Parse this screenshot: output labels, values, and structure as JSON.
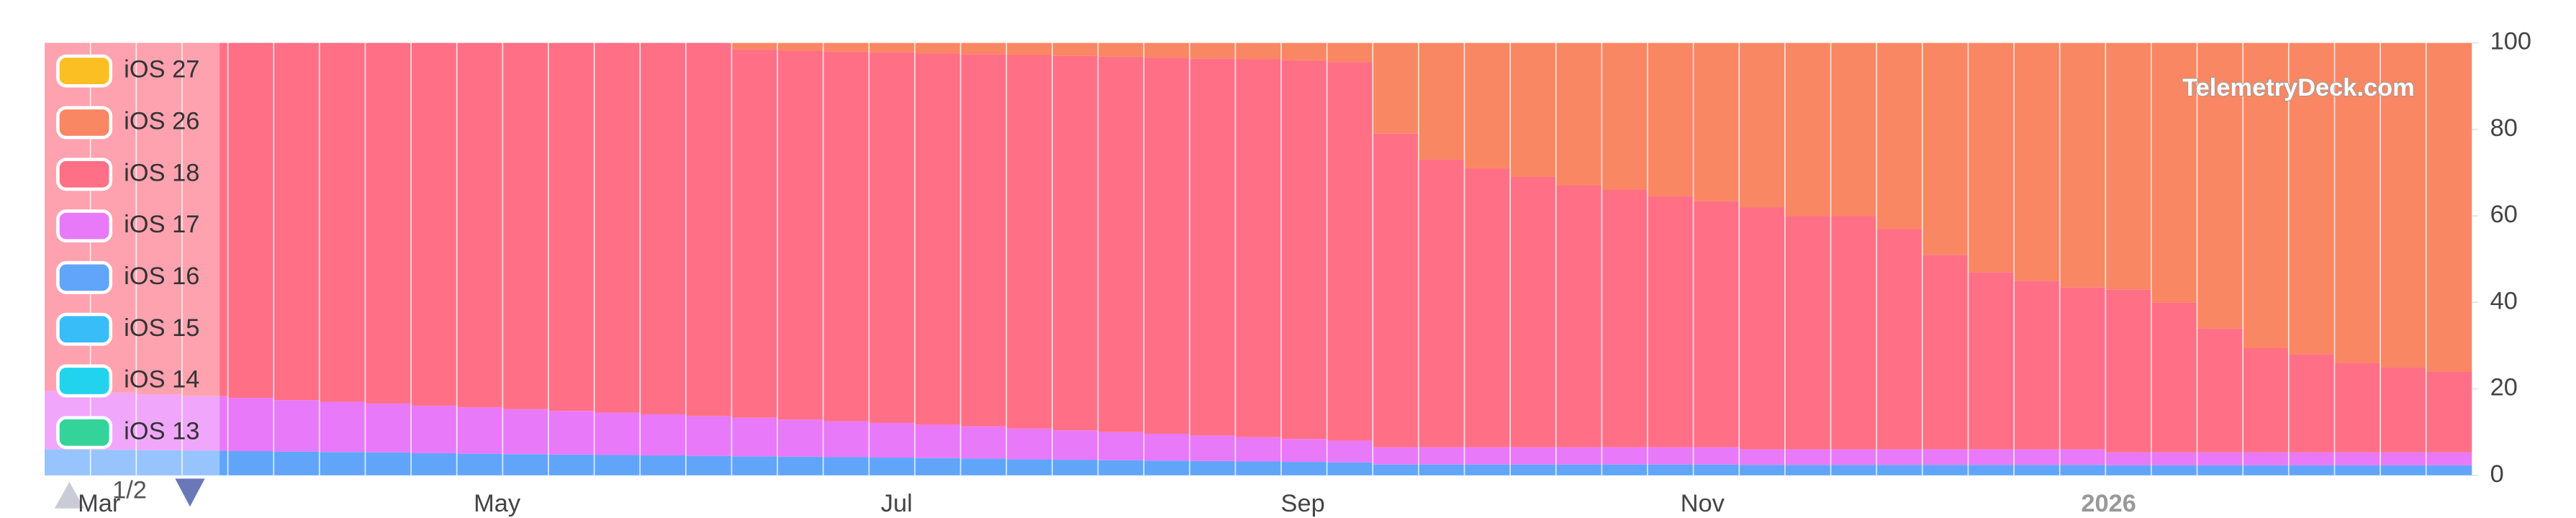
{
  "chart_data": {
    "type": "bar",
    "stacked": true,
    "categories": [
      null,
      null,
      null,
      null,
      null,
      null,
      null,
      null,
      null,
      null,
      null,
      null,
      null,
      null,
      null,
      null,
      null,
      null,
      null,
      null,
      null,
      null,
      null,
      null,
      null,
      null,
      null,
      null,
      null,
      null,
      null,
      null,
      null,
      null,
      null,
      null,
      null,
      null,
      null,
      null,
      null,
      null,
      null,
      null,
      null,
      null,
      null,
      null,
      null,
      null,
      null,
      null,
      null
    ],
    "x_tick_labels": [
      "Mar",
      "May",
      "Jul",
      "Sep",
      "Nov",
      "2026"
    ],
    "ylim": [
      0,
      100
    ],
    "yticks": [
      0,
      20,
      40,
      60,
      80,
      100
    ],
    "y_axis_side": "right",
    "legend": "upper left",
    "legend_page": "1/2",
    "watermark": "TelemetryDeck.com",
    "series": [
      {
        "name": "iOS 27",
        "color": "#fbbf24",
        "values": [
          0,
          0,
          0,
          0,
          0,
          0,
          0,
          0,
          0,
          0,
          0,
          0,
          0,
          0,
          0,
          0,
          0,
          0,
          0,
          0,
          0,
          0,
          0,
          0,
          0,
          0,
          0,
          0,
          0,
          0,
          0,
          0,
          0,
          0,
          0,
          0,
          0,
          0,
          0,
          0,
          0,
          0,
          0,
          0,
          0,
          0,
          0,
          0,
          0,
          0,
          0,
          0,
          0
        ]
      },
      {
        "name": "iOS 26",
        "color": "#f98763",
        "values": [
          0,
          0,
          0,
          0,
          0,
          0,
          0,
          0,
          0,
          0,
          0,
          0,
          0,
          0,
          0,
          1.5,
          1.8,
          2.0,
          2.2,
          2.4,
          2.6,
          2.8,
          3.0,
          3.2,
          3.4,
          3.6,
          3.8,
          4.0,
          4.4,
          21,
          27,
          29,
          31,
          33,
          34,
          35.5,
          36.6,
          38,
          40,
          40,
          43,
          49,
          53,
          55,
          56.5,
          57,
          60,
          66,
          70.6,
          72,
          74,
          75,
          76
        ]
      },
      {
        "name": "iOS 18",
        "color": "#ff7086",
        "values": [
          80.5,
          80.9,
          81.3,
          81.7,
          82.1,
          82.6,
          83.0,
          83.4,
          83.9,
          84.3,
          84.7,
          85.1,
          85.5,
          85.9,
          86.3,
          85.2,
          85.3,
          85.5,
          85.7,
          85.9,
          86.1,
          86.4,
          86.6,
          86.8,
          87.0,
          87.2,
          87.4,
          87.6,
          87.6,
          72.5,
          66.5,
          64.5,
          62.5,
          60.5,
          59.5,
          58.0,
          56.9,
          56.0,
          54.0,
          54.0,
          51.0,
          45.0,
          41.0,
          39.0,
          37.5,
          37.7,
          34.7,
          28.7,
          24.1,
          22.7,
          20.7,
          19.7,
          18.7
        ]
      },
      {
        "name": "iOS 17",
        "color": "#e879f9",
        "values": [
          13.5,
          13.2,
          12.9,
          12.6,
          12.3,
          11.9,
          11.6,
          11.3,
          11.0,
          10.7,
          10.4,
          10.1,
          9.8,
          9.5,
          9.2,
          8.9,
          8.6,
          8.3,
          8.0,
          7.7,
          7.4,
          7.1,
          6.8,
          6.5,
          6.2,
          5.9,
          5.6,
          5.3,
          5.0,
          4.0,
          4.0,
          4.0,
          4.0,
          4.0,
          4.0,
          4.0,
          4.0,
          3.6,
          3.6,
          3.6,
          3.6,
          3.6,
          3.6,
          3.6,
          3.6,
          3.0,
          3.0,
          3.0,
          3.0,
          3.0,
          3.0,
          3.0,
          3.0
        ]
      },
      {
        "name": "iOS 16",
        "color": "#60a5fa",
        "values": [
          6.0,
          5.9,
          5.8,
          5.7,
          5.6,
          5.5,
          5.4,
          5.3,
          5.1,
          5.0,
          4.9,
          4.8,
          4.7,
          4.6,
          4.5,
          4.4,
          4.3,
          4.2,
          4.1,
          4.0,
          3.9,
          3.7,
          3.6,
          3.5,
          3.4,
          3.3,
          3.2,
          3.1,
          3.0,
          2.5,
          2.5,
          2.5,
          2.5,
          2.5,
          2.5,
          2.5,
          2.5,
          2.4,
          2.4,
          2.4,
          2.4,
          2.4,
          2.4,
          2.4,
          2.4,
          2.3,
          2.3,
          2.3,
          2.3,
          2.3,
          2.3,
          2.3,
          2.3
        ]
      },
      {
        "name": "iOS 15",
        "color": "#38bdf8",
        "values": [
          0,
          0,
          0,
          0,
          0,
          0,
          0,
          0,
          0,
          0,
          0,
          0,
          0,
          0,
          0,
          0,
          0,
          0,
          0,
          0,
          0,
          0,
          0,
          0,
          0,
          0,
          0,
          0,
          0,
          0,
          0,
          0,
          0,
          0,
          0,
          0,
          0,
          0,
          0,
          0,
          0,
          0,
          0,
          0,
          0,
          0,
          0,
          0,
          0,
          0,
          0,
          0,
          0
        ]
      },
      {
        "name": "iOS 14",
        "color": "#22d3ee",
        "values": [
          0,
          0,
          0,
          0,
          0,
          0,
          0,
          0,
          0,
          0,
          0,
          0,
          0,
          0,
          0,
          0,
          0,
          0,
          0,
          0,
          0,
          0,
          0,
          0,
          0,
          0,
          0,
          0,
          0,
          0,
          0,
          0,
          0,
          0,
          0,
          0,
          0,
          0,
          0,
          0,
          0,
          0,
          0,
          0,
          0,
          0,
          0,
          0,
          0,
          0,
          0,
          0,
          0
        ]
      },
      {
        "name": "iOS 13",
        "color": "#34d399",
        "values": [
          0,
          0,
          0,
          0,
          0,
          0,
          0,
          0,
          0,
          0,
          0,
          0,
          0,
          0,
          0,
          0,
          0,
          0,
          0,
          0,
          0,
          0,
          0,
          0,
          0,
          0,
          0,
          0,
          0,
          0,
          0,
          0,
          0,
          0,
          0,
          0,
          0,
          0,
          0,
          0,
          0,
          0,
          0,
          0,
          0,
          0,
          0,
          0,
          0,
          0,
          0,
          0,
          0
        ]
      }
    ]
  }
}
